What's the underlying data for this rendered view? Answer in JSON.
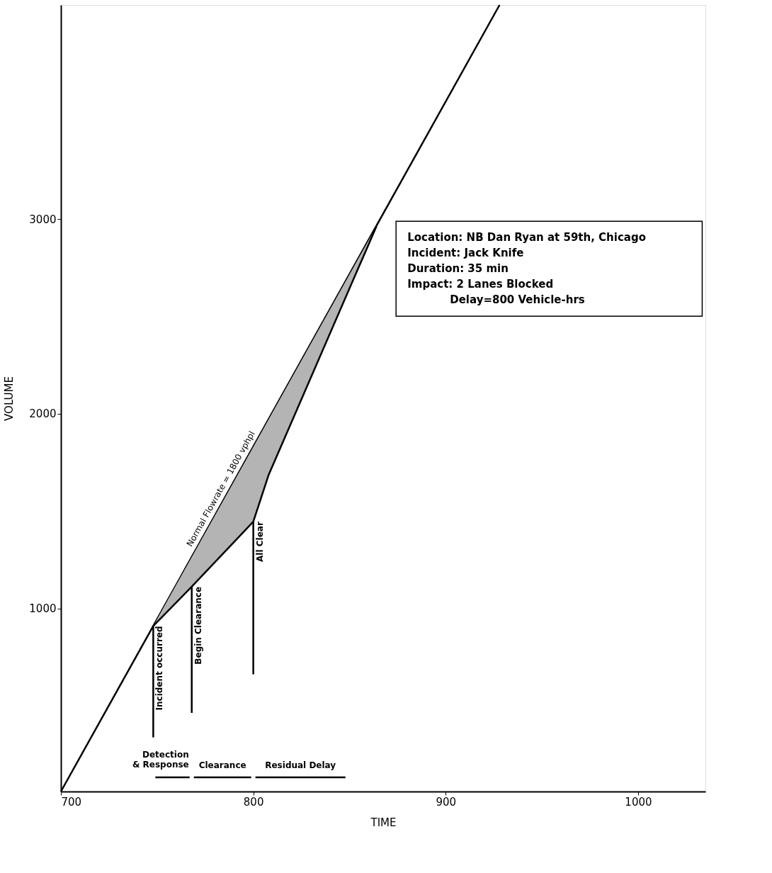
{
  "chart_data": {
    "type": "line",
    "xlabel": "TIME",
    "ylabel": "VOLUME",
    "xlim": [
      700,
      1035
    ],
    "ylim": [
      60,
      4100
    ],
    "xticks": [
      700,
      800,
      900,
      1000
    ],
    "yticks": [
      1000,
      2000,
      3000
    ],
    "grid": false,
    "legend": false,
    "marker": "none",
    "line_style": "solid",
    "series": [
      {
        "name": "Normal Flowrate = 1800 vphpl",
        "color": "#000000",
        "x": [
          700,
          928
        ],
        "values": [
          60,
          4100
        ]
      },
      {
        "color": "#000000",
        "x": [
          748,
          768,
          800,
          808,
          864
        ],
        "values": [
          910,
          1112,
          1446,
          1687,
          2963
        ],
        "lower": [
          910,
          1112,
          1446,
          1687,
          2963
        ],
        "upper": [
          910,
          1264,
          1830,
          1972,
          2963
        ]
      },
      {
        "name": "Incident occurred",
        "color": "#000000",
        "x": [
          748,
          748
        ],
        "values": [
          338,
          910
        ]
      },
      {
        "name": "Begin Clearance",
        "color": "#000000",
        "x": [
          768,
          768
        ],
        "values": [
          464,
          1112
        ]
      },
      {
        "name": "All Clear",
        "color": "#000000",
        "x": [
          800,
          800
        ],
        "values": [
          662,
          1446
        ]
      },
      {
        "name": "Detection\n& Response",
        "color": "#000000",
        "x": [
          748,
          768
        ],
        "values": [
          133,
          133
        ]
      },
      {
        "name": "Clearance",
        "color": "#000000",
        "x": [
          768,
          800
        ],
        "values": [
          133,
          133
        ]
      },
      {
        "name": "Residual  Delay",
        "color": "#000000",
        "x": [
          800,
          849
        ],
        "values": [
          133,
          133
        ]
      }
    ],
    "annotations": [
      "Location: NB Dan Ryan at 59th, Chicago",
      "Incident: Jack Knife",
      "Duration: 35 min",
      "Impact: 2 Lanes Blocked",
      "Delay=800 Vehicle-hrs"
    ]
  }
}
